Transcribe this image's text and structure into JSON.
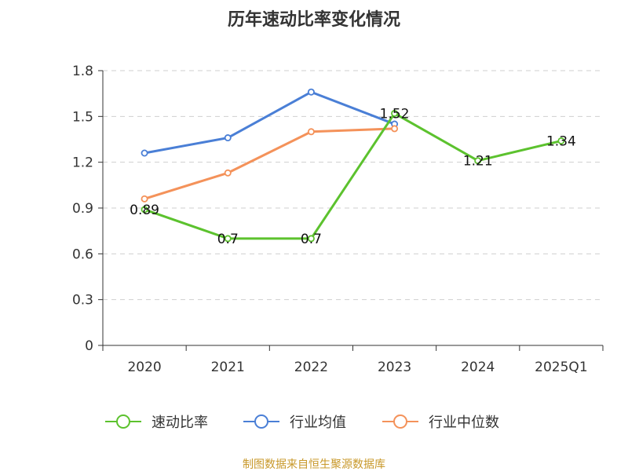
{
  "chart_data": {
    "type": "line",
    "title": "历年速动比率变化情况",
    "categories": [
      "2020",
      "2021",
      "2022",
      "2023",
      "2024",
      "2025Q1"
    ],
    "ylim": [
      0,
      1.8
    ],
    "yticks": [
      "0",
      "0.3",
      "0.6",
      "0.9",
      "1.2",
      "1.5",
      "1.8"
    ],
    "grid": true,
    "legend_position": "bottom",
    "series": [
      {
        "name": "速动比率",
        "color": "#5cc22e",
        "values": [
          0.89,
          0.7,
          0.7,
          1.52,
          1.21,
          1.34
        ],
        "labels": [
          "0.89",
          "0.7",
          "0.7",
          "1.52",
          "1.21",
          "1.34"
        ]
      },
      {
        "name": "行业均值",
        "color": "#4a7fd6",
        "values": [
          1.26,
          1.36,
          1.66,
          1.45,
          null,
          null
        ]
      },
      {
        "name": "行业中位数",
        "color": "#f4925a",
        "values": [
          0.96,
          1.13,
          1.4,
          1.42,
          null,
          null
        ]
      }
    ]
  },
  "source": "制图数据来自恒生聚源数据库"
}
